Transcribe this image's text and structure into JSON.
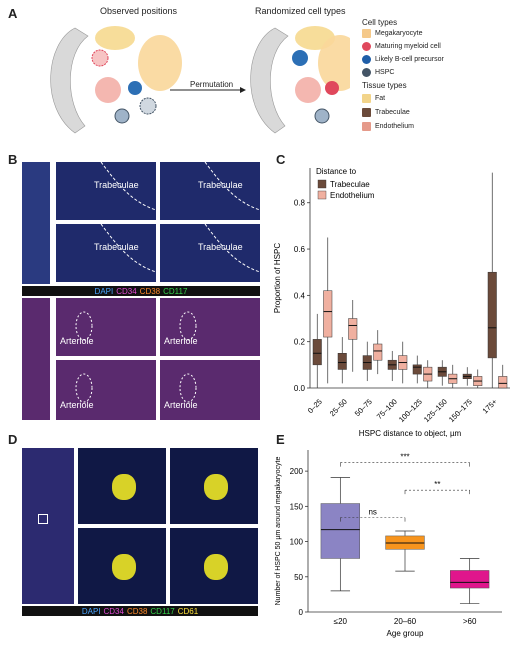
{
  "panels": {
    "A": {
      "letter": "A",
      "observed_title": "Observed positions",
      "randomized_title": "Randomized cell types",
      "arrow_label": "Permutation",
      "cell_types_title": "Cell types",
      "cell_types": [
        {
          "label": "Megakaryocyte",
          "color": "#f5c98a"
        },
        {
          "label": "Maturing myeloid cell",
          "color": "#e0485c"
        },
        {
          "label": "Likely B-cell precursor",
          "color": "#1f5ea8"
        },
        {
          "label": "HSPC",
          "color": "#445566"
        }
      ],
      "tissue_types_title": "Tissue types",
      "tissue_types": [
        {
          "label": "Fat",
          "color": "#f2d48a"
        },
        {
          "label": "Trabeculae",
          "color": "#6b4a3a"
        },
        {
          "label": "Endothelium",
          "color": "#e59a8a"
        }
      ]
    },
    "B": {
      "letter": "B",
      "trabeculae_label": "Trabeculae",
      "arteriole_label": "Arteriole",
      "channels": [
        {
          "label": "DAPI",
          "color": "#4aa3ff"
        },
        {
          "label": "CD34",
          "color": "#e24ad6"
        },
        {
          "label": "CD38",
          "color": "#ff8a2a"
        },
        {
          "label": "CD117",
          "color": "#34d34a"
        }
      ]
    },
    "D": {
      "letter": "D",
      "channels": [
        {
          "label": "DAPI",
          "color": "#4aa3ff"
        },
        {
          "label": "CD34",
          "color": "#e24ad6"
        },
        {
          "label": "CD38",
          "color": "#ff8a2a"
        },
        {
          "label": "CD117",
          "color": "#34d34a"
        },
        {
          "label": "CD61",
          "color": "#ffe23a"
        }
      ]
    }
  },
  "chart_data": [
    {
      "panel": "C",
      "type": "box",
      "letter": "C",
      "xlabel": "HSPC distance to object, µm",
      "ylabel": "Proportion of HSPC",
      "ylim": [
        0,
        0.95
      ],
      "yticks": [
        0.0,
        0.2,
        0.4,
        0.6,
        0.8
      ],
      "legend_title": "Distance to",
      "legend_position": "top-left",
      "categories": [
        "0–25",
        "25–50",
        "50–75",
        "75–100",
        "100–125",
        "125–150",
        "150–175",
        "175+"
      ],
      "series": [
        {
          "name": "Trabeculae",
          "color": "#6b4a3a",
          "boxes": [
            {
              "min": 0.0,
              "q1": 0.1,
              "median": 0.15,
              "q3": 0.21,
              "max": 0.32
            },
            {
              "min": 0.02,
              "q1": 0.08,
              "median": 0.11,
              "q3": 0.15,
              "max": 0.22
            },
            {
              "min": 0.03,
              "q1": 0.08,
              "median": 0.11,
              "q3": 0.14,
              "max": 0.2
            },
            {
              "min": 0.03,
              "q1": 0.08,
              "median": 0.1,
              "q3": 0.12,
              "max": 0.16
            },
            {
              "min": 0.02,
              "q1": 0.06,
              "median": 0.09,
              "q3": 0.1,
              "max": 0.14
            },
            {
              "min": 0.01,
              "q1": 0.05,
              "median": 0.07,
              "q3": 0.09,
              "max": 0.12
            },
            {
              "min": 0.01,
              "q1": 0.04,
              "median": 0.05,
              "q3": 0.06,
              "max": 0.09
            },
            {
              "min": 0.0,
              "q1": 0.13,
              "median": 0.26,
              "q3": 0.5,
              "max": 0.93
            }
          ]
        },
        {
          "name": "Endothelium",
          "color": "#f0b0a0",
          "boxes": [
            {
              "min": 0.02,
              "q1": 0.22,
              "median": 0.33,
              "q3": 0.42,
              "max": 0.65
            },
            {
              "min": 0.07,
              "q1": 0.21,
              "median": 0.27,
              "q3": 0.3,
              "max": 0.38
            },
            {
              "min": 0.06,
              "q1": 0.12,
              "median": 0.16,
              "q3": 0.19,
              "max": 0.25
            },
            {
              "min": 0.02,
              "q1": 0.08,
              "median": 0.11,
              "q3": 0.14,
              "max": 0.2
            },
            {
              "min": 0.0,
              "q1": 0.03,
              "median": 0.06,
              "q3": 0.09,
              "max": 0.12
            },
            {
              "min": 0.0,
              "q1": 0.02,
              "median": 0.04,
              "q3": 0.06,
              "max": 0.1
            },
            {
              "min": 0.0,
              "q1": 0.01,
              "median": 0.03,
              "q3": 0.05,
              "max": 0.08
            },
            {
              "min": 0.0,
              "q1": 0.0,
              "median": 0.02,
              "q3": 0.05,
              "max": 0.1
            }
          ]
        }
      ]
    },
    {
      "panel": "E",
      "type": "box",
      "letter": "E",
      "xlabel": "Age group",
      "ylabel": "Number of HSPC 50 µm around megakaryocyte",
      "ylim": [
        0,
        230
      ],
      "yticks": [
        0,
        50,
        100,
        150,
        200
      ],
      "categories": [
        "≤20",
        "20–60",
        ">60"
      ],
      "colors": [
        "#8b84c4",
        "#f7941d",
        "#e0168c"
      ],
      "boxes": [
        {
          "min": 30,
          "q1": 76,
          "median": 117,
          "q3": 154,
          "max": 191
        },
        {
          "min": 58,
          "q1": 89,
          "median": 98,
          "q3": 108,
          "max": 115
        },
        {
          "min": 12,
          "q1": 34,
          "median": 42,
          "q3": 59,
          "max": 76
        }
      ],
      "annotations": [
        {
          "label": "***",
          "from": 0,
          "to": 2,
          "y": 212
        },
        {
          "label": "ns",
          "from": 0,
          "to": 1,
          "y": 134
        },
        {
          "label": "**",
          "from": 1,
          "to": 2,
          "y": 173
        }
      ]
    }
  ]
}
